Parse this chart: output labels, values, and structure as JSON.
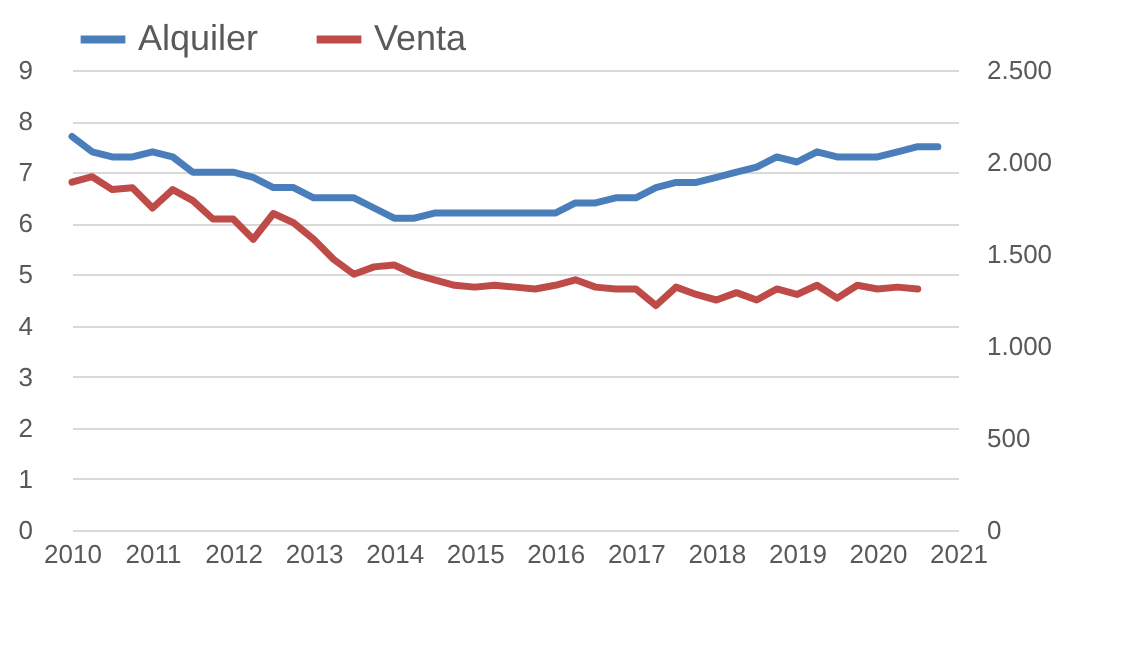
{
  "chart_data": {
    "type": "line",
    "x": [
      2010,
      2010.25,
      2010.5,
      2010.75,
      2011,
      2011.25,
      2011.5,
      2011.75,
      2012,
      2012.25,
      2012.5,
      2012.75,
      2013,
      2013.25,
      2013.5,
      2013.75,
      2014,
      2014.25,
      2014.5,
      2014.75,
      2015,
      2015.25,
      2015.5,
      2015.75,
      2016,
      2016.25,
      2016.5,
      2016.75,
      2017,
      2017.25,
      2017.5,
      2017.75,
      2018,
      2018.25,
      2018.5,
      2018.75,
      2019,
      2019.25,
      2019.5,
      2019.75,
      2020,
      2020.25,
      2020.5,
      2020.75
    ],
    "series": [
      {
        "name": "Alquiler",
        "color": "#4a7ebb",
        "values": [
          7.7,
          7.4,
          7.3,
          7.3,
          7.4,
          7.3,
          7.0,
          7.0,
          7.0,
          6.9,
          6.7,
          6.7,
          6.5,
          6.5,
          6.5,
          6.3,
          6.1,
          6.1,
          6.2,
          6.2,
          6.2,
          6.2,
          6.2,
          6.2,
          6.2,
          6.4,
          6.4,
          6.5,
          6.5,
          6.7,
          6.8,
          6.8,
          6.9,
          7.0,
          7.1,
          7.3,
          7.2,
          7.4,
          7.3,
          7.3,
          7.3,
          7.4,
          7.5,
          7.5
        ]
      },
      {
        "name": "Venta",
        "color": "#be4b48",
        "axis": "y2",
        "values": [
          1890,
          1920,
          1850,
          1860,
          1750,
          1850,
          1790,
          1690,
          1690,
          1580,
          1720,
          1670,
          1580,
          1470,
          1390,
          1430,
          1440,
          1390,
          1360,
          1330,
          1320,
          1330,
          1320,
          1310,
          1330,
          1360,
          1320,
          1310,
          1310,
          1220,
          1320,
          1280,
          1250,
          1290,
          1250,
          1310,
          1280,
          1330,
          1260,
          1330,
          1310,
          1320,
          1310,
          null
        ]
      }
    ],
    "xlim": [
      2010,
      2021
    ],
    "xticks": [
      2010,
      2011,
      2012,
      2013,
      2014,
      2015,
      2016,
      2017,
      2018,
      2019,
      2020,
      2021
    ],
    "ylim": [
      0,
      9
    ],
    "yticks": [
      0,
      1,
      2,
      3,
      4,
      5,
      6,
      7,
      8,
      9
    ],
    "y2lim": [
      0,
      2500
    ],
    "y2ticks": [
      0,
      500,
      {
        "value": 1000,
        "label": "1.000"
      },
      {
        "value": 1500,
        "label": "1.500"
      },
      {
        "value": 2000,
        "label": "2.000"
      },
      {
        "value": 2500,
        "label": "2.500"
      }
    ],
    "grid": "y",
    "legend": "top",
    "marker": "none",
    "line_style": "solid"
  }
}
